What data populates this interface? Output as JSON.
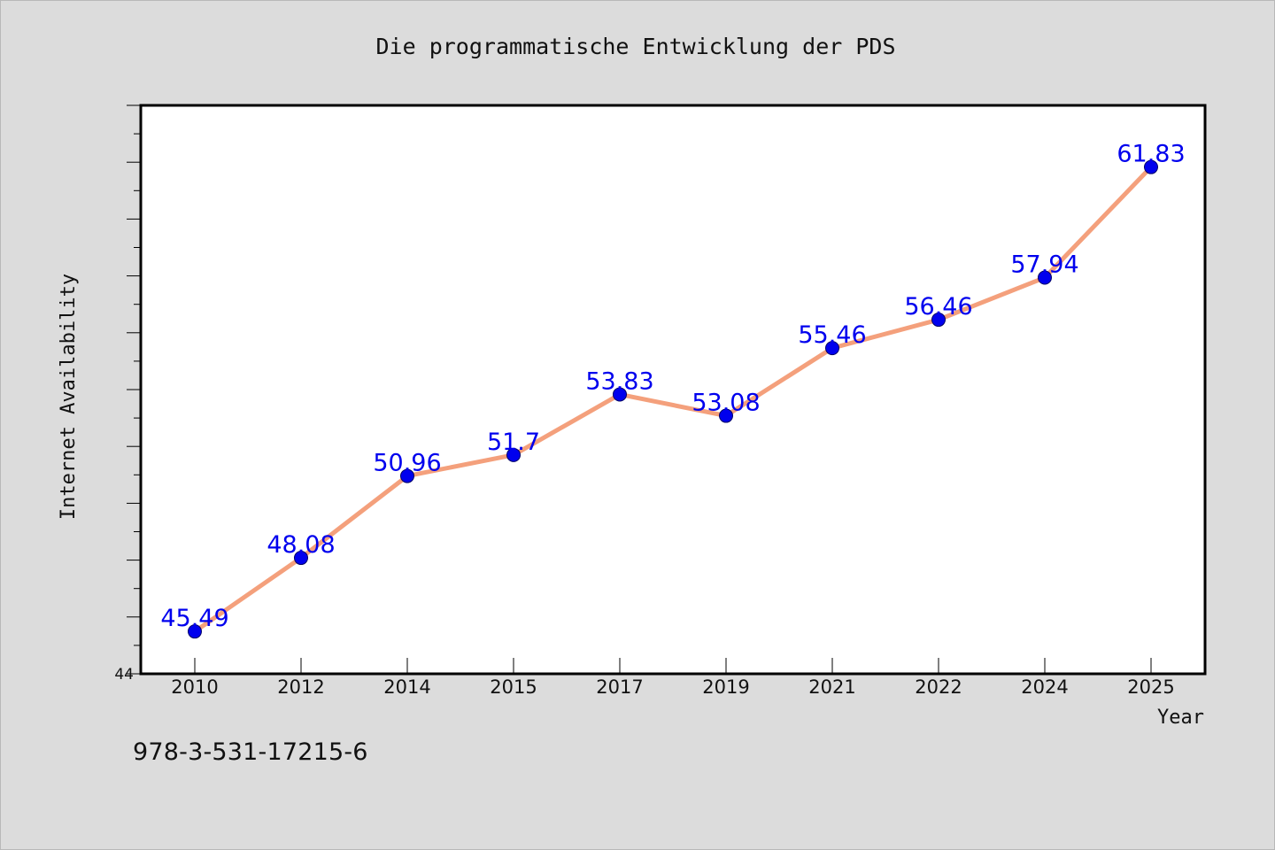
{
  "chart_data": {
    "type": "line",
    "title": "Die programmatische Entwicklung der PDS",
    "xlabel": "Year",
    "ylabel": "Internet Availability",
    "categories": [
      "2010",
      "2012",
      "2014",
      "2015",
      "2017",
      "2019",
      "2021",
      "2022",
      "2024",
      "2025"
    ],
    "values": [
      45.49,
      48.08,
      50.96,
      51.7,
      53.83,
      53.08,
      55.46,
      56.46,
      57.94,
      61.83
    ],
    "data_labels": [
      "45.49",
      "48.08",
      "50.96",
      "51.7",
      "53.83",
      "53.08",
      "55.46",
      "56.46",
      "57.94",
      "61.83"
    ],
    "ylim": [
      44,
      64
    ],
    "y_tick_labels": [
      "44"
    ],
    "grid": false,
    "legend": "none",
    "colors": {
      "line": "#f4a07c",
      "marker": "#0000ee",
      "label": "#0000ee",
      "plot_bg": "#ffffff",
      "page_bg": "#dcdcdc"
    }
  },
  "footer": {
    "isbn": "978-3-531-17215-6"
  }
}
